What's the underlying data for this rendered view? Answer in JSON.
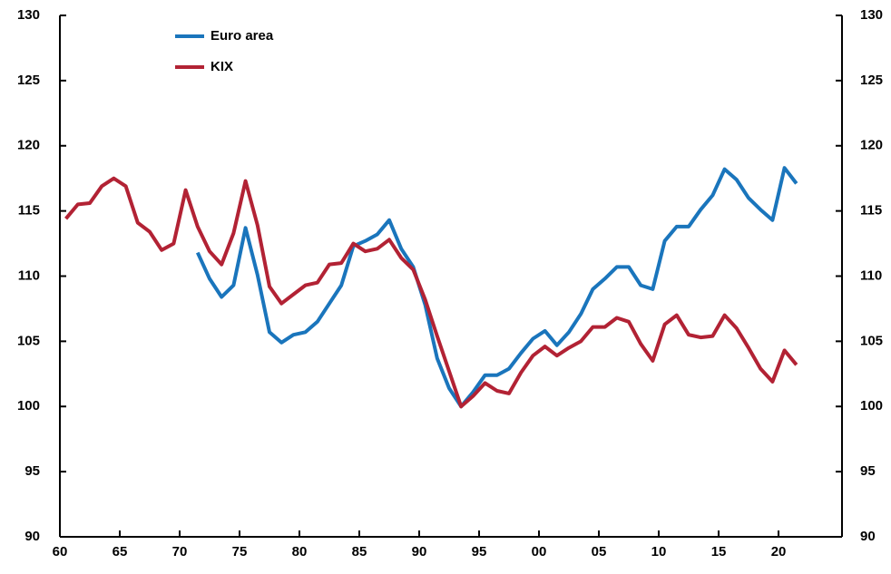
{
  "chart_data": {
    "type": "line",
    "x": [
      1960.5,
      1961.5,
      1962.5,
      1963.5,
      1964.5,
      1965.5,
      1966.5,
      1967.5,
      1968.5,
      1969.5,
      1970.5,
      1971.5,
      1972.5,
      1973.5,
      1974.5,
      1975.5,
      1976.5,
      1977.5,
      1978.5,
      1979.5,
      1980.5,
      1981.5,
      1982.5,
      1983.5,
      1984.5,
      1985.5,
      1986.5,
      1987.5,
      1988.5,
      1989.5,
      1990.5,
      1991.5,
      1992.5,
      1993.5,
      1994.5,
      1995.5,
      1996.5,
      1997.5,
      1998.5,
      1999.5,
      2000.5,
      2001.5,
      2002.5,
      2003.5,
      2004.5,
      2005.5,
      2006.5,
      2007.5,
      2008.5,
      2009.5,
      2010.5,
      2011.5,
      2012.5,
      2013.5,
      2014.5,
      2015.5,
      2016.5,
      2017.5,
      2018.5,
      2019.5,
      2020.5,
      2021.5
    ],
    "series": [
      {
        "name": "Euro area",
        "color": "#1a75bc",
        "values": [
          null,
          null,
          null,
          null,
          null,
          null,
          null,
          null,
          null,
          null,
          null,
          111.8,
          109.8,
          108.4,
          109.3,
          113.7,
          110.1,
          105.7,
          104.9,
          105.5,
          105.7,
          106.5,
          107.9,
          109.3,
          112.3,
          112.7,
          113.2,
          114.3,
          112.1,
          110.7,
          107.8,
          103.7,
          101.4,
          100.0,
          101.1,
          102.4,
          102.4,
          102.9,
          104.1,
          105.2,
          105.8,
          104.7,
          105.7,
          107.1,
          109.0,
          109.8,
          110.7,
          110.7,
          109.3,
          109.0,
          112.7,
          113.8,
          113.8,
          115.1,
          116.2,
          118.2,
          117.4,
          116.0,
          115.1,
          114.3,
          118.3,
          117.1
        ]
      },
      {
        "name": "KIX",
        "color": "#b22234",
        "values": [
          114.4,
          115.5,
          115.6,
          116.9,
          117.5,
          116.9,
          114.1,
          113.4,
          112.0,
          112.5,
          116.6,
          113.8,
          111.9,
          110.9,
          113.3,
          117.3,
          113.9,
          109.2,
          107.9,
          108.6,
          109.3,
          109.5,
          110.9,
          111.0,
          112.5,
          111.9,
          112.1,
          112.8,
          111.4,
          110.5,
          108.2,
          105.4,
          102.7,
          100.0,
          100.8,
          101.8,
          101.2,
          101.0,
          102.6,
          103.9,
          104.6,
          103.9,
          104.5,
          105.0,
          106.1,
          106.1,
          106.8,
          106.5,
          104.8,
          103.5,
          106.3,
          107.0,
          105.5,
          105.3,
          105.4,
          107.0,
          106.0,
          104.5,
          102.9,
          101.9,
          104.3,
          103.2
        ]
      }
    ],
    "xlim": [
      1960,
      2025.3
    ],
    "xticks": [
      {
        "value": 1960,
        "label": "60"
      },
      {
        "value": 1965,
        "label": "65"
      },
      {
        "value": 1970,
        "label": "70"
      },
      {
        "value": 1975,
        "label": "75"
      },
      {
        "value": 1980,
        "label": "80"
      },
      {
        "value": 1985,
        "label": "85"
      },
      {
        "value": 1990,
        "label": "90"
      },
      {
        "value": 1995,
        "label": "95"
      },
      {
        "value": 2000,
        "label": "00"
      },
      {
        "value": 2005,
        "label": "05"
      },
      {
        "value": 2010,
        "label": "10"
      },
      {
        "value": 2015,
        "label": "15"
      },
      {
        "value": 2020,
        "label": "20"
      }
    ],
    "ylim": [
      90,
      130
    ],
    "yticks": [
      90,
      95,
      100,
      105,
      110,
      115,
      120,
      125,
      130
    ],
    "y2lim": [
      90,
      130
    ],
    "y2ticks": [
      90,
      95,
      100,
      105,
      110,
      115,
      120,
      125,
      130
    ],
    "grid": false,
    "legend": "top-left"
  }
}
